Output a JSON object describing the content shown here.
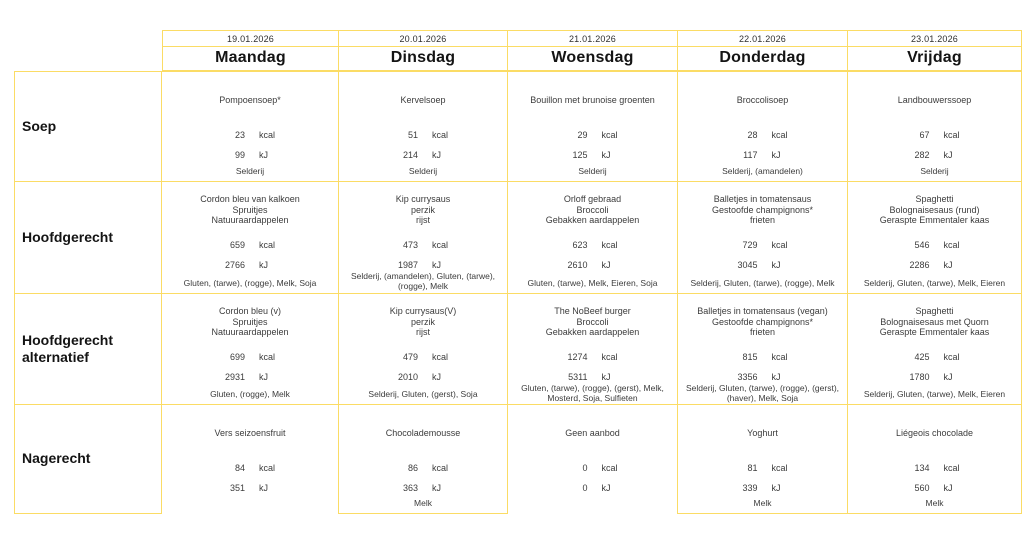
{
  "colors": {
    "table_border": "#fbdc65"
  },
  "menu": {
    "kcal_unit": "kcal",
    "kj_unit": "kJ",
    "days": [
      {
        "date": "19.01.2026",
        "label": "Maandag"
      },
      {
        "date": "20.01.2026",
        "label": "Dinsdag"
      },
      {
        "date": "21.01.2026",
        "label": "Woensdag"
      },
      {
        "date": "22.01.2026",
        "label": "Donderdag"
      },
      {
        "date": "23.01.2026",
        "label": "Vrijdag"
      }
    ],
    "sections": [
      {
        "label": "Soep",
        "cells": [
          {
            "dish": [
              "Pompoensoep*"
            ],
            "kcal": "23",
            "kj": "99",
            "allergens": "Selderij"
          },
          {
            "dish": [
              "Kervelsoep"
            ],
            "kcal": "51",
            "kj": "214",
            "allergens": "Selderij"
          },
          {
            "dish": [
              "Bouillon met brunoise groenten"
            ],
            "kcal": "29",
            "kj": "125",
            "allergens": "Selderij"
          },
          {
            "dish": [
              "Broccolisoep"
            ],
            "kcal": "28",
            "kj": "117",
            "allergens": "Selderij, (amandelen)"
          },
          {
            "dish": [
              "Landbouwerssoep"
            ],
            "kcal": "67",
            "kj": "282",
            "allergens": "Selderij"
          }
        ]
      },
      {
        "label": "Hoofdgerecht",
        "cells": [
          {
            "dish": [
              "Cordon bleu van kalkoen",
              "Spruitjes",
              "Natuuraardappelen"
            ],
            "kcal": "659",
            "kj": "2766",
            "allergens": "Gluten, (tarwe), (rogge), Melk, Soja"
          },
          {
            "dish": [
              "Kip currysaus",
              "perzik",
              "rijst"
            ],
            "kcal": "473",
            "kj": "1987",
            "allergens": "Selderij, (amandelen), Gluten, (tarwe), (rogge), Melk"
          },
          {
            "dish": [
              "Orloff gebraad",
              "Broccoli",
              "Gebakken aardappelen"
            ],
            "kcal": "623",
            "kj": "2610",
            "allergens": "Gluten, (tarwe), Melk, Eieren, Soja"
          },
          {
            "dish": [
              "Balletjes in tomatensaus",
              "Gestoofde champignons*",
              "frieten"
            ],
            "kcal": "729",
            "kj": "3045",
            "allergens": "Selderij, Gluten, (tarwe), (rogge), Melk"
          },
          {
            "dish": [
              "Spaghetti",
              "Bolognaisesaus (rund)",
              "Geraspte Emmentaler kaas"
            ],
            "kcal": "546",
            "kj": "2286",
            "allergens": "Selderij, Gluten, (tarwe), Melk, Eieren"
          }
        ]
      },
      {
        "label": "Hoofdgerecht alternatief",
        "cells": [
          {
            "dish": [
              "Cordon bleu (v)",
              "Spruitjes",
              "Natuuraardappelen"
            ],
            "kcal": "699",
            "kj": "2931",
            "allergens": "Gluten, (rogge), Melk"
          },
          {
            "dish": [
              "Kip currysaus(V)",
              "perzik",
              "rijst"
            ],
            "kcal": "479",
            "kj": "2010",
            "allergens": "Selderij, Gluten, (gerst), Soja"
          },
          {
            "dish": [
              "The NoBeef burger",
              "Broccoli",
              "Gebakken aardappelen"
            ],
            "kcal": "1274",
            "kj": "5311",
            "allergens": "Gluten, (tarwe), (rogge), (gerst), Melk, Mosterd, Soja, Sulfieten"
          },
          {
            "dish": [
              "Balletjes in tomatensaus (vegan)",
              "Gestoofde champignons*",
              "frieten"
            ],
            "kcal": "815",
            "kj": "3356",
            "allergens": "Selderij, Gluten, (tarwe), (rogge), (gerst), (haver), Melk, Soja"
          },
          {
            "dish": [
              "Spaghetti",
              "Bolognaisesaus met Quorn",
              "Geraspte Emmentaler kaas"
            ],
            "kcal": "425",
            "kj": "1780",
            "allergens": "Selderij, Gluten, (tarwe), Melk, Eieren"
          }
        ]
      },
      {
        "label": "Nagerecht",
        "cells": [
          {
            "dish": [
              "Vers seizoensfruit"
            ],
            "kcal": "84",
            "kj": "351",
            "allergens": ""
          },
          {
            "dish": [
              "Chocolademousse"
            ],
            "kcal": "86",
            "kj": "363",
            "allergens": "Melk"
          },
          {
            "dish": [
              "Geen aanbod"
            ],
            "kcal": "0",
            "kj": "0",
            "allergens": ""
          },
          {
            "dish": [
              "Yoghurt"
            ],
            "kcal": "81",
            "kj": "339",
            "allergens": "Melk"
          },
          {
            "dish": [
              "Liégeois chocolade"
            ],
            "kcal": "134",
            "kj": "560",
            "allergens": "Melk"
          }
        ]
      }
    ]
  }
}
